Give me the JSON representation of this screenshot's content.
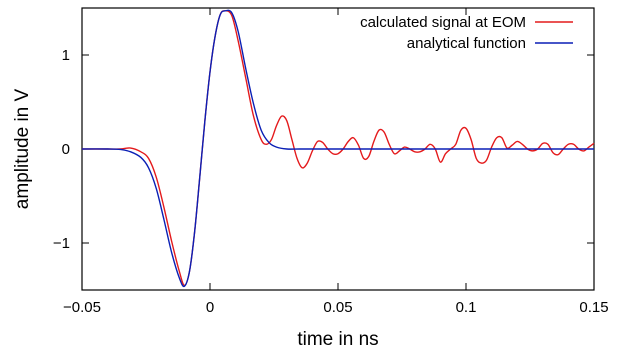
{
  "chart_data": {
    "type": "line",
    "title": "",
    "xlabel": "time in ns",
    "ylabel": "amplitude in V",
    "xlim": [
      -0.05,
      0.15
    ],
    "ylim": [
      -1.5,
      1.5
    ],
    "xticks": [
      {
        "value": -0.05,
        "label": "−0.05"
      },
      {
        "value": 0,
        "label": "0"
      },
      {
        "value": 0.05,
        "label": "0.05"
      },
      {
        "value": 0.1,
        "label": "0.1"
      },
      {
        "value": 0.15,
        "label": "0.15"
      }
    ],
    "yticks": [
      {
        "value": -1,
        "label": "−1"
      },
      {
        "value": 0,
        "label": "0"
      },
      {
        "value": 1,
        "label": "1"
      }
    ],
    "grid": false,
    "legend_position": "top-right",
    "series": [
      {
        "name": "calculated signal at EOM",
        "color": "#e41a1c",
        "x": [
          -0.05,
          -0.04,
          -0.035,
          -0.031,
          -0.027,
          -0.024,
          -0.021,
          -0.018,
          -0.015,
          -0.012,
          -0.01,
          -0.008,
          -0.006,
          -0.004,
          -0.002,
          0.0,
          0.002,
          0.004,
          0.006,
          0.0085,
          0.011,
          0.014,
          0.017,
          0.02,
          0.022,
          0.024,
          0.026,
          0.028,
          0.03,
          0.032,
          0.034,
          0.036,
          0.038,
          0.04,
          0.042,
          0.044,
          0.046,
          0.048,
          0.05,
          0.052,
          0.054,
          0.056,
          0.058,
          0.06,
          0.062,
          0.064,
          0.066,
          0.068,
          0.07,
          0.072,
          0.074,
          0.076,
          0.078,
          0.08,
          0.082,
          0.084,
          0.086,
          0.088,
          0.09,
          0.092,
          0.094,
          0.096,
          0.098,
          0.1,
          0.102,
          0.104,
          0.106,
          0.108,
          0.11,
          0.112,
          0.114,
          0.116,
          0.118,
          0.12,
          0.122,
          0.124,
          0.126,
          0.128,
          0.13,
          0.132,
          0.134,
          0.136,
          0.138,
          0.14,
          0.142,
          0.144,
          0.146,
          0.148,
          0.15
        ],
        "y": [
          0,
          0,
          0,
          0.01,
          -0.03,
          -0.1,
          -0.3,
          -0.62,
          -0.98,
          -1.3,
          -1.45,
          -1.3,
          -0.88,
          -0.3,
          0.3,
          0.82,
          1.2,
          1.43,
          1.47,
          1.42,
          1.15,
          0.75,
          0.35,
          0.1,
          0.05,
          0.1,
          0.25,
          0.35,
          0.3,
          0.1,
          -0.1,
          -0.2,
          -0.15,
          -0.02,
          0.08,
          0.07,
          0.0,
          -0.05,
          -0.05,
          0.0,
          0.08,
          0.12,
          0.04,
          -0.1,
          -0.08,
          0.08,
          0.2,
          0.18,
          0.05,
          -0.05,
          -0.02,
          0.02,
          0.0,
          -0.03,
          -0.03,
          0.0,
          0.05,
          0.0,
          -0.14,
          -0.05,
          0.0,
          0.05,
          0.2,
          0.22,
          0.1,
          -0.1,
          -0.15,
          -0.12,
          0.02,
          0.12,
          0.12,
          0.01,
          0.04,
          0.08,
          0.05,
          0.0,
          -0.02,
          0.0,
          0.06,
          0.05,
          -0.04,
          -0.06,
          0.0,
          0.05,
          0.05,
          0.0,
          -0.02,
          0.02,
          0.06
        ]
      },
      {
        "name": "analytical function",
        "color": "#0a1fb5",
        "x": [
          -0.05,
          -0.04,
          -0.035,
          -0.031,
          -0.027,
          -0.024,
          -0.021,
          -0.018,
          -0.015,
          -0.012,
          -0.01,
          -0.008,
          -0.006,
          -0.004,
          -0.002,
          0.0,
          0.002,
          0.004,
          0.006,
          0.0085,
          0.011,
          0.014,
          0.017,
          0.02,
          0.023,
          0.026,
          0.03,
          0.035,
          0.04,
          0.05,
          0.06,
          0.08,
          0.1,
          0.12,
          0.15
        ],
        "y": [
          0,
          0,
          -0.005,
          -0.03,
          -0.09,
          -0.2,
          -0.42,
          -0.75,
          -1.1,
          -1.37,
          -1.46,
          -1.3,
          -0.88,
          -0.3,
          0.3,
          0.82,
          1.2,
          1.43,
          1.47,
          1.45,
          1.25,
          0.85,
          0.48,
          0.2,
          0.07,
          0.02,
          0.0,
          0.0,
          0.0,
          0.0,
          0.0,
          0.0,
          0.0,
          0.0,
          0.0
        ]
      }
    ]
  }
}
